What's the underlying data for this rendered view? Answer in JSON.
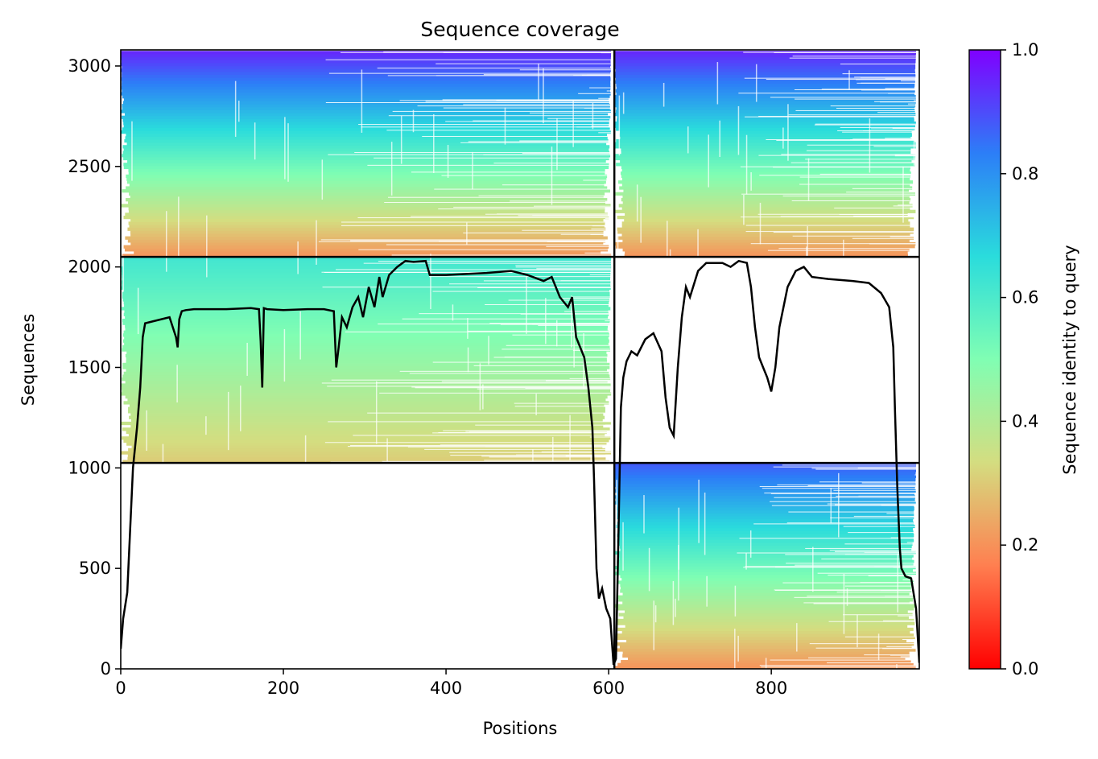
{
  "chart_data": {
    "type": "heatmap",
    "title": "Sequence coverage",
    "xlabel": "Positions",
    "ylabel": "Sequences",
    "colorbar_label": "Sequence identity to query",
    "colormap": "rainbow",
    "color_stops": [
      "#ff0000",
      "#ff7f50",
      "#d4dd80",
      "#80feb3",
      "#2adcdc",
      "#2c7ef7",
      "#8000ff"
    ],
    "xlim": [
      0,
      982
    ],
    "ylim": [
      0,
      3080
    ],
    "clim": [
      0.0,
      1.0
    ],
    "x_ticks": [
      0,
      200,
      400,
      600,
      800
    ],
    "y_ticks": [
      0,
      500,
      1000,
      1500,
      2000,
      2500,
      3000
    ],
    "colorbar_ticks": [
      0.0,
      0.2,
      0.4,
      0.6,
      0.8,
      1.0
    ],
    "tick_labels": {
      "x": [
        "0",
        "200",
        "400",
        "600",
        "800"
      ],
      "y": [
        "0",
        "500",
        "1000",
        "1500",
        "2000",
        "2500",
        "3000"
      ],
      "colorbar": [
        "0.0",
        "0.2",
        "0.4",
        "0.6",
        "0.8",
        "1.0"
      ]
    },
    "segment_boundaries_x": [
      607
    ],
    "block_boundaries_y": [
      1025,
      2050
    ],
    "blocks": [
      {
        "name": "top-left",
        "x": [
          0,
          607
        ],
        "y": [
          2050,
          3075
        ],
        "identity": [
          0.2,
          0.95
        ]
      },
      {
        "name": "top-right",
        "x": [
          607,
          982
        ],
        "y": [
          2050,
          3075
        ],
        "identity": [
          0.2,
          0.95
        ]
      },
      {
        "name": "middle-left",
        "x": [
          0,
          607
        ],
        "y": [
          1025,
          2050
        ],
        "identity": [
          0.3,
          0.62
        ]
      },
      {
        "name": "bottom-right",
        "x": [
          607,
          982
        ],
        "y": [
          0,
          1025
        ],
        "identity": [
          0.2,
          0.88
        ]
      }
    ],
    "series": [
      {
        "type": "line",
        "color": "#000000",
        "x": [
          0,
          3,
          8,
          15,
          20,
          24,
          27,
          30,
          40,
          60,
          68,
          70,
          72,
          75,
          80,
          90,
          100,
          130,
          160,
          170,
          172,
          174,
          176,
          180,
          200,
          230,
          250,
          262,
          265,
          268,
          272,
          278,
          285,
          292,
          298,
          305,
          312,
          318,
          322,
          330,
          340,
          350,
          360,
          375,
          380,
          400,
          450,
          480,
          500,
          520,
          530,
          540,
          550,
          555,
          560,
          570,
          575,
          580,
          582,
          585,
          588,
          592,
          597,
          602,
          606,
          609,
          612,
          615,
          618,
          622,
          628,
          635,
          645,
          655,
          665,
          670,
          675,
          680,
          685,
          690,
          695,
          700,
          710,
          720,
          740,
          750,
          760,
          770,
          775,
          780,
          785,
          790,
          795,
          800,
          805,
          810,
          820,
          830,
          840,
          850,
          870,
          900,
          920,
          935,
          945,
          950,
          952,
          955,
          958,
          960,
          965,
          972,
          978,
          982
        ],
        "y": [
          100,
          250,
          380,
          1000,
          1200,
          1400,
          1650,
          1720,
          1730,
          1750,
          1650,
          1600,
          1740,
          1780,
          1785,
          1790,
          1790,
          1790,
          1795,
          1790,
          1630,
          1400,
          1795,
          1790,
          1785,
          1790,
          1790,
          1780,
          1500,
          1600,
          1750,
          1700,
          1800,
          1850,
          1750,
          1900,
          1800,
          1950,
          1850,
          1960,
          2000,
          2030,
          2025,
          2030,
          1960,
          1960,
          1970,
          1980,
          1960,
          1930,
          1950,
          1850,
          1800,
          1850,
          1650,
          1550,
          1400,
          1200,
          950,
          500,
          350,
          400,
          300,
          250,
          20,
          50,
          650,
          1300,
          1450,
          1530,
          1580,
          1560,
          1640,
          1670,
          1580,
          1350,
          1200,
          1160,
          1500,
          1750,
          1900,
          1850,
          1980,
          2020,
          2020,
          2000,
          2030,
          2020,
          1900,
          1700,
          1550,
          1500,
          1450,
          1380,
          1500,
          1700,
          1900,
          1980,
          2000,
          1950,
          1940,
          1930,
          1920,
          1870,
          1800,
          1600,
          1300,
          900,
          600,
          500,
          460,
          450,
          300,
          30
        ]
      }
    ],
    "grid": false,
    "legend": "none"
  }
}
